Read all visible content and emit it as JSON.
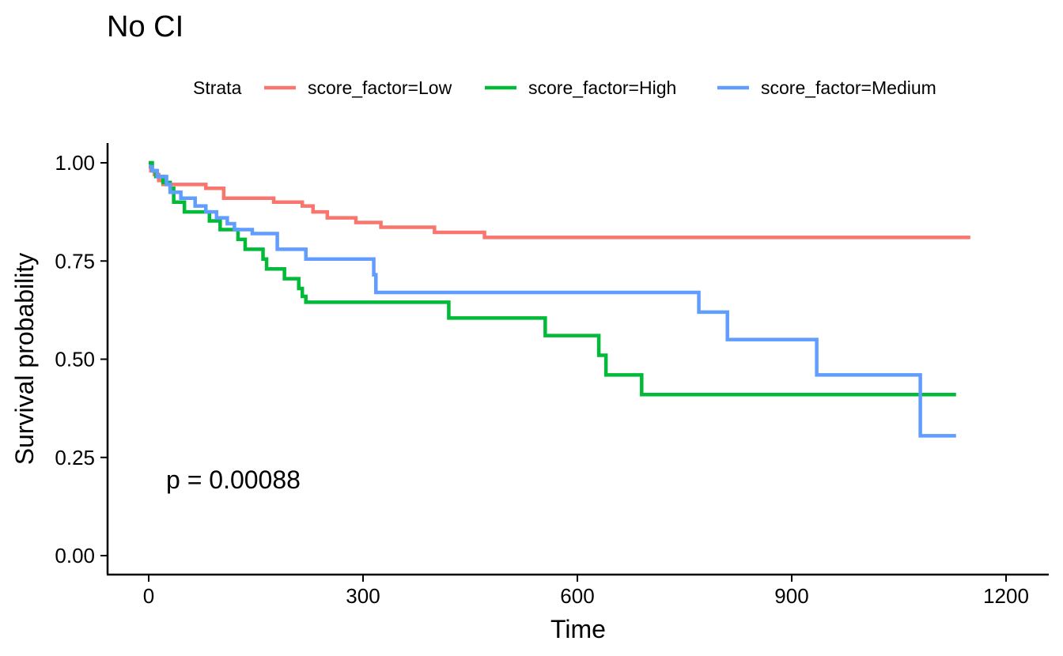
{
  "chart_data": {
    "type": "line",
    "subtype": "kaplan-meier step",
    "title": "No CI",
    "xlabel": "Time",
    "ylabel": "Survival probability",
    "xlim": [
      -50,
      1250
    ],
    "ylim": [
      -0.05,
      1.05
    ],
    "x_ticks": [
      0,
      300,
      600,
      900,
      1200
    ],
    "y_ticks": [
      0.0,
      0.25,
      0.5,
      0.75,
      1.0
    ],
    "x_tick_labels": [
      "0",
      "300",
      "600",
      "900",
      "1200"
    ],
    "y_tick_labels": [
      "0.00",
      "0.25",
      "0.50",
      "0.75",
      "1.00"
    ],
    "grid": false,
    "legend": {
      "title": "Strata",
      "position": "top",
      "entries": [
        "score_factor=Low",
        "score_factor=High",
        "score_factor=Medium"
      ]
    },
    "annotation": "p = 0.00088",
    "series": [
      {
        "name": "score_factor=Low",
        "color": "#F8766D",
        "x": [
          0,
          3,
          8,
          14,
          20,
          80,
          105,
          175,
          215,
          230,
          250,
          290,
          325,
          400,
          470,
          1150
        ],
        "y": [
          1.0,
          0.98,
          0.97,
          0.955,
          0.945,
          0.935,
          0.91,
          0.9,
          0.89,
          0.875,
          0.86,
          0.848,
          0.836,
          0.823,
          0.81,
          0.81
        ]
      },
      {
        "name": "score_factor=High",
        "color": "#00BA38",
        "x": [
          0,
          5,
          10,
          20,
          30,
          35,
          50,
          85,
          100,
          125,
          135,
          160,
          165,
          190,
          210,
          215,
          220,
          420,
          555,
          630,
          640,
          690,
          1130
        ],
        "y": [
          1.0,
          0.98,
          0.965,
          0.95,
          0.935,
          0.9,
          0.875,
          0.852,
          0.83,
          0.805,
          0.78,
          0.755,
          0.73,
          0.705,
          0.68,
          0.66,
          0.645,
          0.605,
          0.56,
          0.51,
          0.46,
          0.41,
          0.41
        ]
      },
      {
        "name": "score_factor=Medium",
        "color": "#619CFF",
        "x": [
          0,
          5,
          12,
          25,
          30,
          45,
          65,
          80,
          95,
          110,
          120,
          145,
          180,
          220,
          315,
          318,
          770,
          810,
          935,
          1080,
          1130
        ],
        "y": [
          0.99,
          0.98,
          0.965,
          0.945,
          0.925,
          0.91,
          0.89,
          0.875,
          0.86,
          0.845,
          0.83,
          0.82,
          0.78,
          0.755,
          0.715,
          0.67,
          0.62,
          0.55,
          0.46,
          0.305,
          0.305
        ]
      }
    ]
  }
}
